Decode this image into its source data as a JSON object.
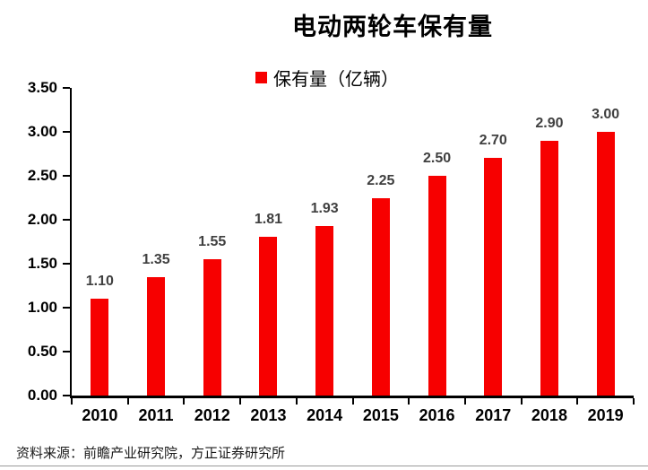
{
  "title": "电动两轮车保有量",
  "legend": {
    "label": "保有量（亿辆）"
  },
  "source": "资料来源：前瞻产业研究院，方正证券研究所",
  "colors": {
    "bar": "#f70000",
    "data_label": "#404040",
    "axis": "#000000",
    "divider": "#9a9a9a"
  },
  "chart_data": {
    "type": "bar",
    "title": "电动两轮车保有量",
    "categories": [
      "2010",
      "2011",
      "2012",
      "2013",
      "2014",
      "2015",
      "2016",
      "2017",
      "2018",
      "2019"
    ],
    "series": [
      {
        "name": "保有量（亿辆）",
        "values": [
          1.1,
          1.35,
          1.55,
          1.81,
          1.93,
          2.25,
          2.5,
          2.7,
          2.9,
          3.0
        ]
      }
    ],
    "xlabel": "",
    "ylabel": "",
    "ylim": [
      0,
      3.5
    ],
    "ytick_step": 0.5,
    "value_label_decimals": 2,
    "grid": false,
    "legend_position": "top-center"
  }
}
